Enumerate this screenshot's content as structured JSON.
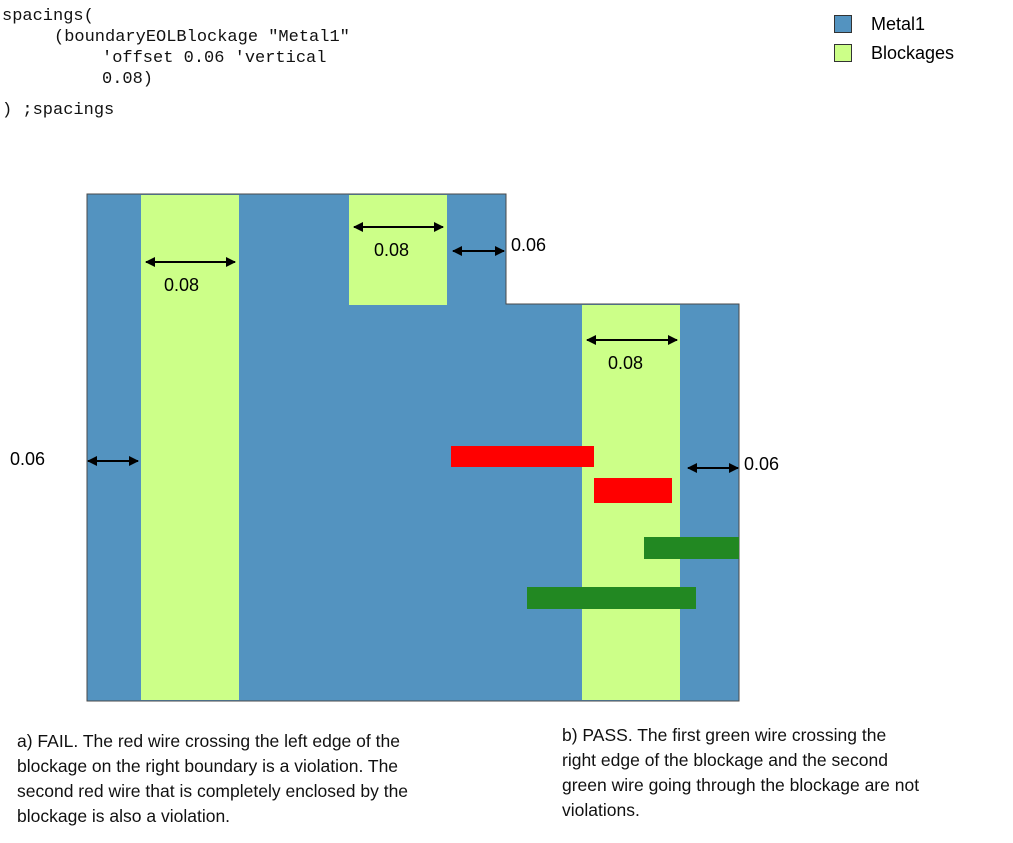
{
  "code": {
    "lines": [
      "spacings(",
      "(boundaryEOLBlockage \"Metal1\"",
      "'offset 0.06 'vertical",
      "0.08)",
      ") ;spacings"
    ]
  },
  "legend": [
    {
      "label": "Metal1",
      "color": "#5393c0"
    },
    {
      "label": "Blockages",
      "color": "#ccff88"
    }
  ],
  "colors": {
    "metal": "#5393c0",
    "blockage": "#ccff88",
    "violation_wire": "#ff0000",
    "pass_wire": "#228822"
  },
  "dimensions": {
    "blockage1_width": "0.08",
    "blockage2_width": "0.08",
    "blockage3_width": "0.08",
    "top_offset": "0.06",
    "left_offset": "0.06",
    "right_offset": "0.06"
  },
  "captions": {
    "fail": "a) FAIL. The red wire crossing the left edge of the\nblockage on the right boundary is a violation. The\nsecond red wire that is completely enclosed by the\nblockage is also a violation.",
    "pass": "b) PASS. The first green wire crossing the\nright edge of the blockage and the second\ngreen wire going through the blockage are not\nviolations."
  }
}
